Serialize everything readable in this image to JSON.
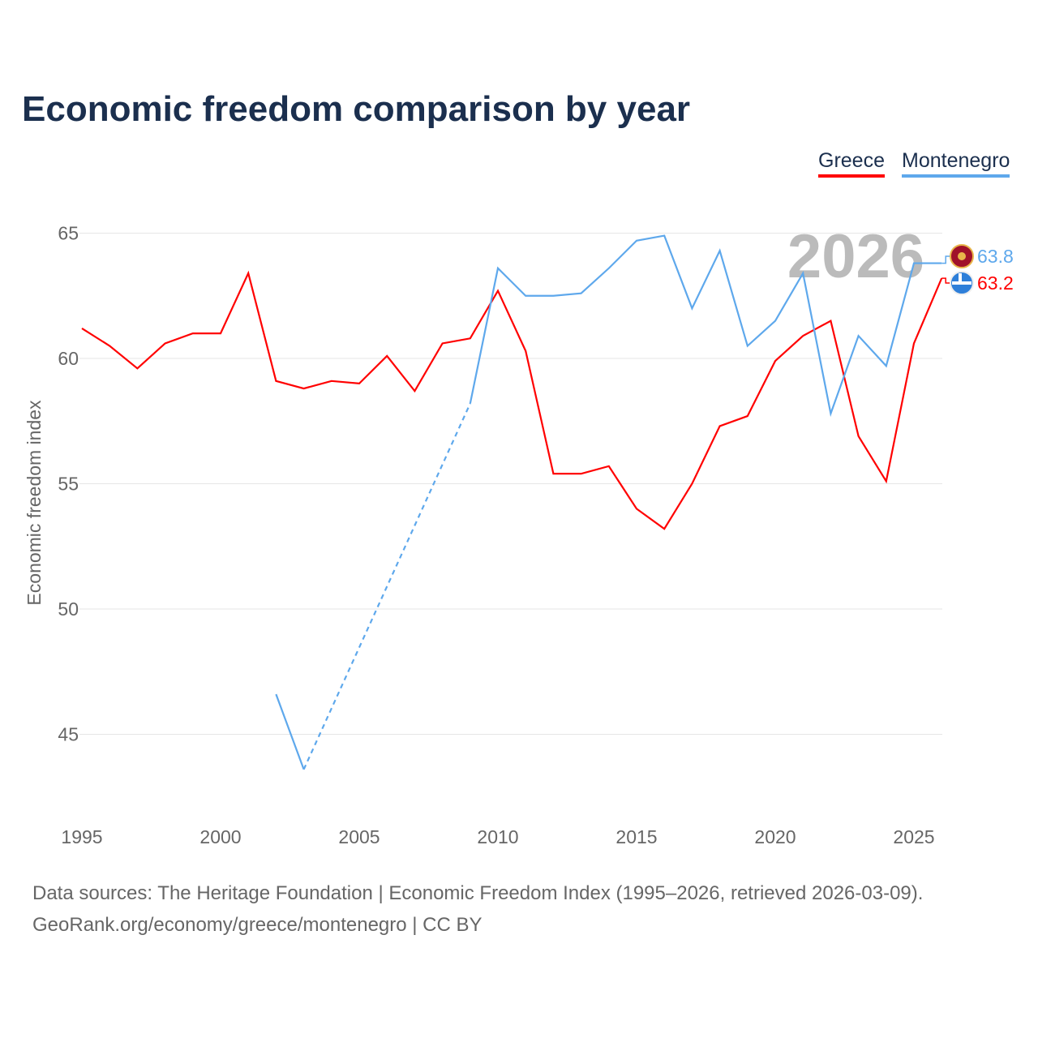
{
  "title": "Economic freedom comparison by year",
  "footer": {
    "line1": "Data sources: The Heritage Foundation | Economic Freedom Index (1995–2026, retrieved 2026-03-09).",
    "line2": "GeoRank.org/economy/greece/montenegro | CC BY"
  },
  "chart_data": {
    "type": "line",
    "title": "Economic freedom comparison by year",
    "xlabel": "",
    "ylabel": "Economic freedom index",
    "xlim": [
      1995,
      2026
    ],
    "ylim": [
      42,
      67
    ],
    "xticks": [
      "1995",
      "2000",
      "2005",
      "2010",
      "2015",
      "2020",
      "2025"
    ],
    "yticks": [
      "45",
      "50",
      "55",
      "60",
      "65"
    ],
    "grid": true,
    "legend_position": "top-right",
    "year_watermark": "2026",
    "x": [
      1995,
      1996,
      1997,
      1998,
      1999,
      2000,
      2001,
      2002,
      2003,
      2004,
      2005,
      2006,
      2007,
      2008,
      2009,
      2010,
      2011,
      2012,
      2013,
      2014,
      2015,
      2016,
      2017,
      2018,
      2019,
      2020,
      2021,
      2022,
      2023,
      2024,
      2025,
      2026
    ],
    "series": [
      {
        "name": "Greece",
        "color": "#ff0000",
        "end_label": "63.2",
        "values": [
          61.2,
          60.5,
          59.6,
          60.6,
          61.0,
          61.0,
          63.4,
          59.1,
          58.8,
          59.1,
          59.0,
          60.1,
          58.7,
          60.6,
          60.8,
          62.7,
          60.3,
          55.4,
          55.4,
          55.7,
          54.0,
          53.2,
          55.0,
          57.3,
          57.7,
          59.9,
          60.9,
          61.5,
          56.9,
          55.1,
          60.6,
          63.2
        ]
      },
      {
        "name": "Montenegro",
        "color": "#5ea8ec",
        "end_label": "63.8",
        "values": [
          null,
          null,
          null,
          null,
          null,
          null,
          null,
          46.6,
          43.6,
          null,
          null,
          null,
          null,
          null,
          58.2,
          63.6,
          62.5,
          62.5,
          62.6,
          63.6,
          64.7,
          64.9,
          62.0,
          64.3,
          60.5,
          61.5,
          63.4,
          57.8,
          60.9,
          59.7,
          63.8,
          63.8
        ]
      }
    ]
  }
}
